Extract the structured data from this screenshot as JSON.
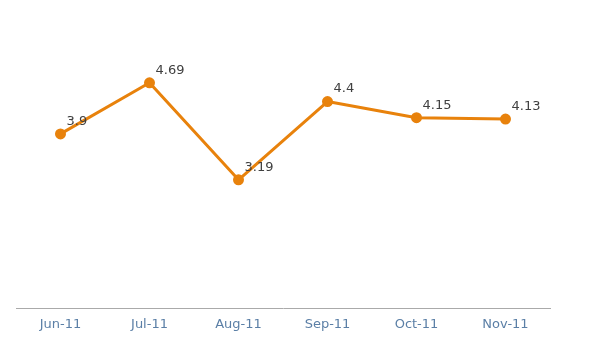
{
  "chart_data": {
    "type": "line",
    "categories": [
      "Jun-11",
      "Jul-11",
      "Aug-11",
      "Sep-11",
      "Oct-11",
      "Nov-11"
    ],
    "values": [
      3.9,
      4.69,
      3.19,
      4.4,
      4.15,
      4.13
    ],
    "color": "#E8820C",
    "marker": "circle",
    "ylim": [
      1.2,
      5.6
    ],
    "data_labels": true,
    "tick_labels": "x",
    "grid": false
  }
}
